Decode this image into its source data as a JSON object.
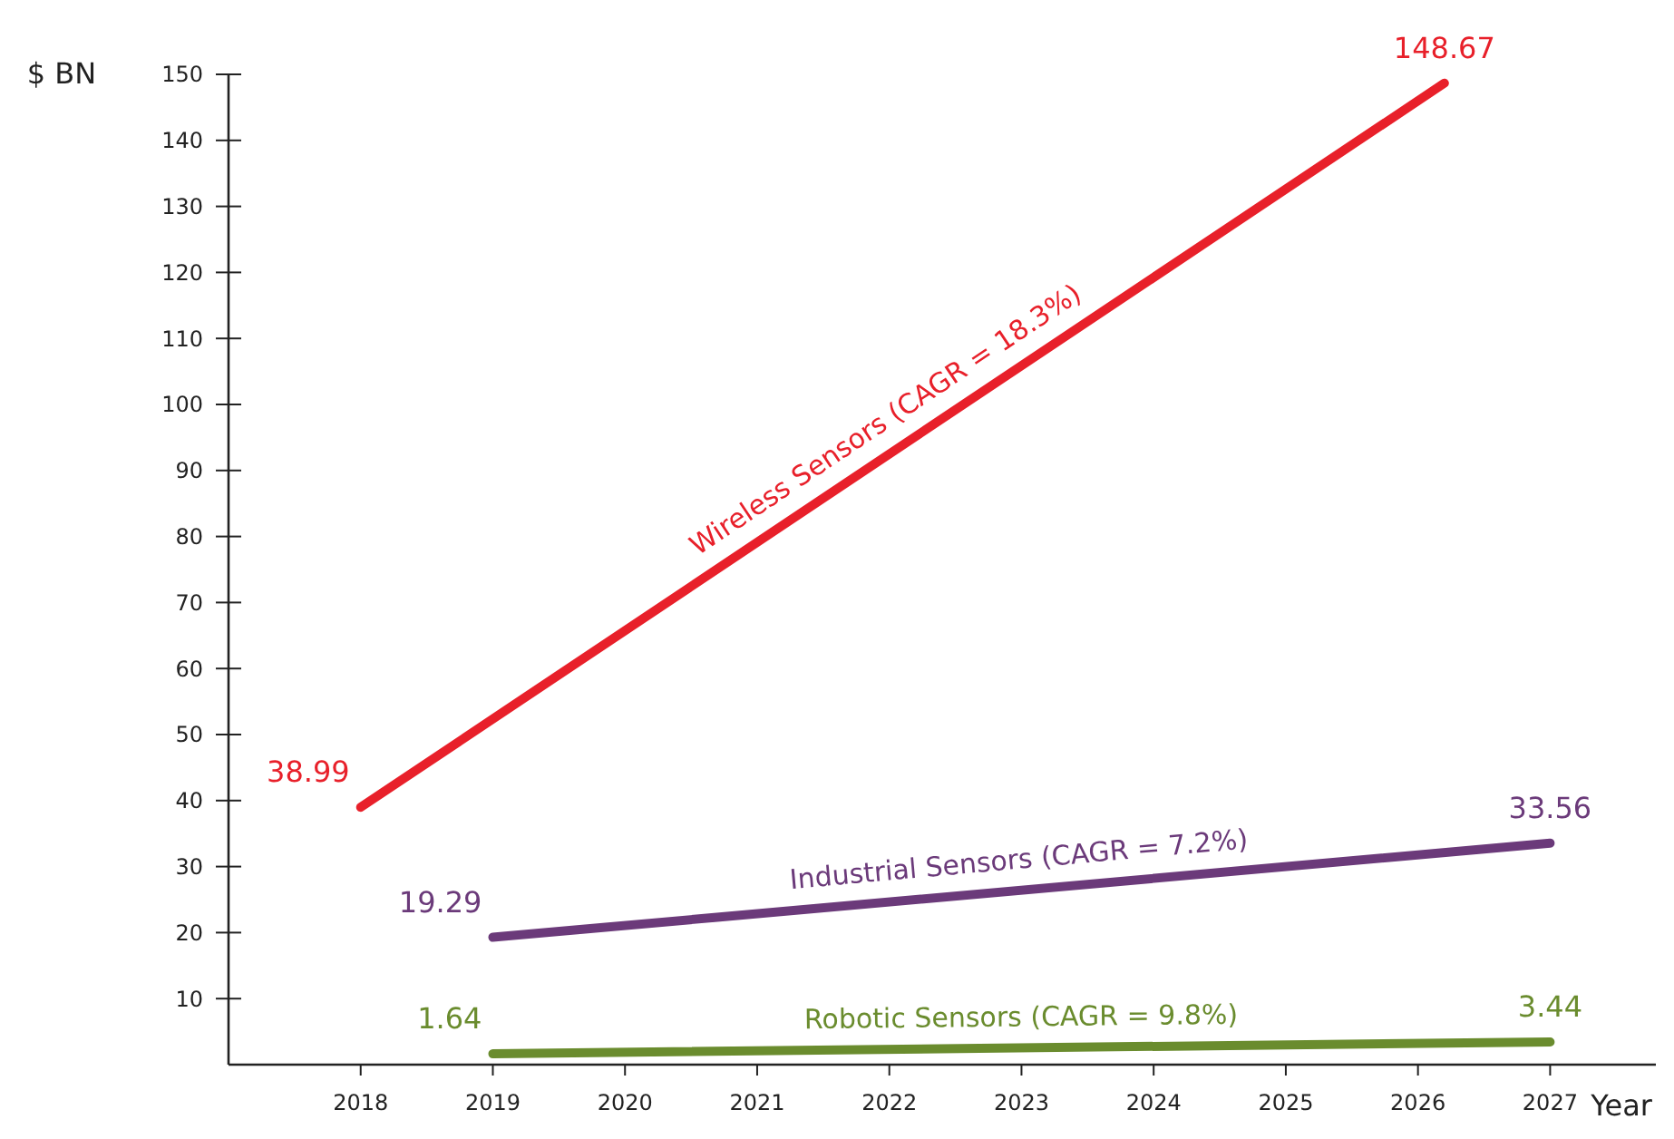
{
  "chart_data": {
    "type": "line",
    "xlabel": "Year",
    "ylabel": "$ BN",
    "xlim": [
      2017,
      2027.8
    ],
    "xticks": [
      2018,
      2019,
      2020,
      2021,
      2022,
      2023,
      2024,
      2025,
      2026,
      2027
    ],
    "ylim": [
      0,
      150
    ],
    "yticks": [
      10,
      20,
      30,
      40,
      50,
      60,
      70,
      80,
      90,
      100,
      110,
      120,
      130,
      140,
      150
    ],
    "grid": false,
    "marker": "none",
    "line_style": "solid",
    "data_labels": true,
    "series": [
      {
        "name": "Wireless Sensors (CAGR = 18.3%)",
        "color": "#e8202a",
        "x": [
          2018,
          2026.2
        ],
        "values": [
          38.99,
          148.67
        ]
      },
      {
        "name": "Industrial Sensors (CAGR = 7.2%)",
        "color": "#6b3a7a",
        "x": [
          2019,
          2027
        ],
        "values": [
          19.29,
          33.56
        ]
      },
      {
        "name": "Robotic Sensors (CAGR = 9.8%)",
        "color": "#6a8c2e",
        "x": [
          2019,
          2027
        ],
        "values": [
          1.64,
          3.44
        ]
      }
    ]
  }
}
